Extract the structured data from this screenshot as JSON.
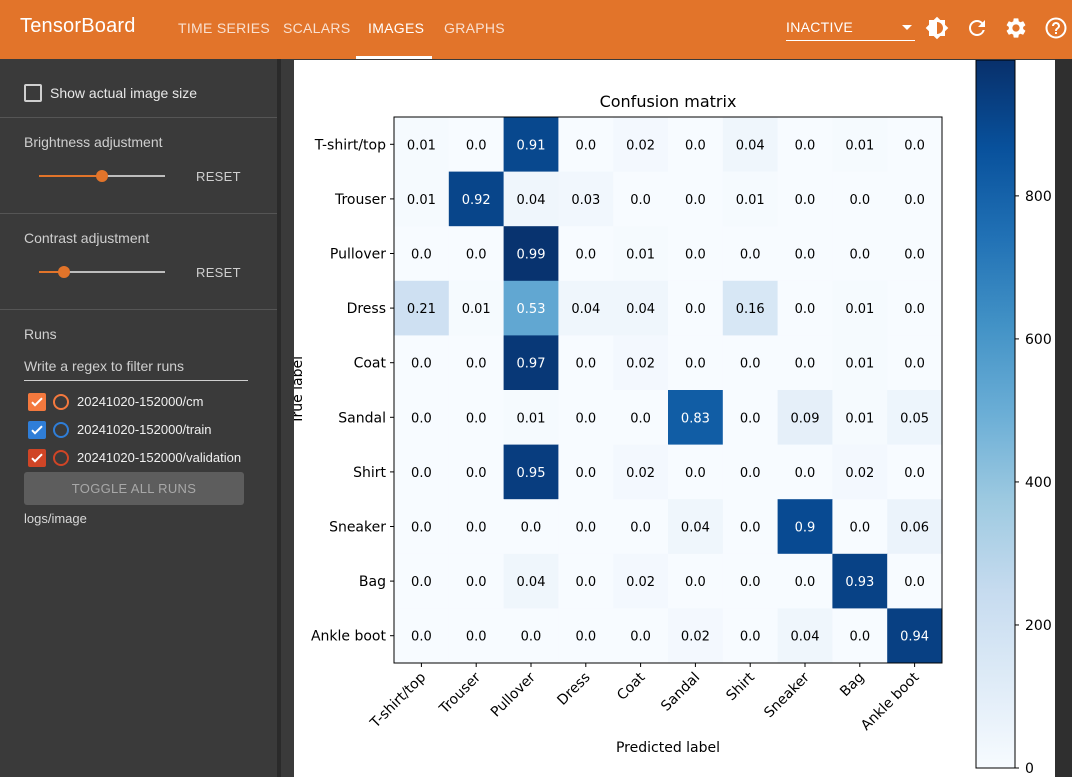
{
  "app": {
    "title": "TensorBoard"
  },
  "nav": {
    "tabs": [
      {
        "label": "TIME SERIES",
        "active": false
      },
      {
        "label": "SCALARS",
        "active": false
      },
      {
        "label": "IMAGES",
        "active": true
      },
      {
        "label": "GRAPHS",
        "active": false
      }
    ],
    "selector": {
      "value": "INACTIVE"
    },
    "icons": [
      "brightness-icon",
      "refresh-icon",
      "settings-icon",
      "help-icon"
    ]
  },
  "sidebar": {
    "show_actual_size": {
      "label": "Show actual image size",
      "checked": false
    },
    "brightness": {
      "label": "Brightness adjustment",
      "value": 0.5,
      "reset_label": "RESET"
    },
    "contrast": {
      "label": "Contrast adjustment",
      "value": 0.2,
      "reset_label": "RESET"
    },
    "runs": {
      "title": "Runs",
      "filter_placeholder": "Write a regex to filter runs",
      "items": [
        {
          "name": "20241020-152000/cm",
          "checked": true,
          "color": "#f4793e"
        },
        {
          "name": "20241020-152000/train",
          "checked": true,
          "color": "#2f7ed8"
        },
        {
          "name": "20241020-152000/validation",
          "checked": true,
          "color": "#d04526"
        }
      ],
      "toggle_all_label": "TOGGLE ALL RUNS"
    },
    "tag": "logs/image"
  },
  "colors": {
    "accent": "#e2742a",
    "cmap_high": "#08306b",
    "cmap_low": "#f7fbff"
  },
  "chart_data": {
    "type": "heatmap",
    "title": "Confusion matrix",
    "xlabel": "Predicted label",
    "ylabel": "True label",
    "rows": [
      "T-shirt/top",
      "Trouser",
      "Pullover",
      "Dress",
      "Coat",
      "Sandal",
      "Shirt",
      "Sneaker",
      "Bag",
      "Ankle boot"
    ],
    "columns": [
      "T-shirt/top",
      "Trouser",
      "Pullover",
      "Dress",
      "Coat",
      "Sandal",
      "Shirt",
      "Sneaker",
      "Bag",
      "Ankle boot"
    ],
    "values": [
      [
        "0.01",
        "0.0",
        "0.91",
        "0.0",
        "0.02",
        "0.0",
        "0.04",
        "0.0",
        "0.01",
        "0.0"
      ],
      [
        "0.01",
        "0.92",
        "0.04",
        "0.03",
        "0.0",
        "0.0",
        "0.01",
        "0.0",
        "0.0",
        "0.0"
      ],
      [
        "0.0",
        "0.0",
        "0.99",
        "0.0",
        "0.01",
        "0.0",
        "0.0",
        "0.0",
        "0.0",
        "0.0"
      ],
      [
        "0.21",
        "0.01",
        "0.53",
        "0.04",
        "0.04",
        "0.0",
        "0.16",
        "0.0",
        "0.01",
        "0.0"
      ],
      [
        "0.0",
        "0.0",
        "0.97",
        "0.0",
        "0.02",
        "0.0",
        "0.0",
        "0.0",
        "0.01",
        "0.0"
      ],
      [
        "0.0",
        "0.0",
        "0.01",
        "0.0",
        "0.0",
        "0.83",
        "0.0",
        "0.09",
        "0.01",
        "0.05"
      ],
      [
        "0.0",
        "0.0",
        "0.95",
        "0.0",
        "0.02",
        "0.0",
        "0.0",
        "0.0",
        "0.02",
        "0.0"
      ],
      [
        "0.0",
        "0.0",
        "0.0",
        "0.0",
        "0.0",
        "0.04",
        "0.0",
        "0.9",
        "0.0",
        "0.06"
      ],
      [
        "0.0",
        "0.0",
        "0.04",
        "0.0",
        "0.02",
        "0.0",
        "0.0",
        "0.0",
        "0.93",
        "0.0"
      ],
      [
        "0.0",
        "0.0",
        "0.0",
        "0.0",
        "0.0",
        "0.02",
        "0.0",
        "0.04",
        "0.0",
        "0.94"
      ]
    ],
    "colorbar": {
      "ticks": [
        0,
        200,
        400,
        600,
        800
      ],
      "range": [
        0,
        990
      ]
    }
  }
}
